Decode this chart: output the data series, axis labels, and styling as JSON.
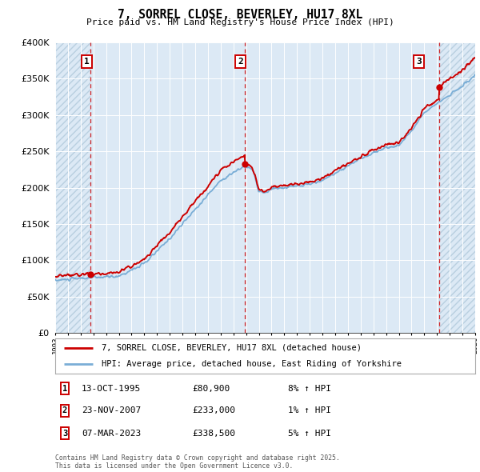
{
  "title": "7, SORREL CLOSE, BEVERLEY, HU17 8XL",
  "subtitle": "Price paid vs. HM Land Registry's House Price Index (HPI)",
  "ylim": [
    0,
    400000
  ],
  "yticks": [
    0,
    50000,
    100000,
    150000,
    200000,
    250000,
    300000,
    350000,
    400000
  ],
  "ytick_labels": [
    "£0",
    "£50K",
    "£100K",
    "£150K",
    "£200K",
    "£250K",
    "£300K",
    "£350K",
    "£400K"
  ],
  "x_start_year": 1993,
  "x_end_year": 2026,
  "sale_points": [
    {
      "year": 1995.79,
      "price": 80900,
      "label": "1"
    },
    {
      "year": 2007.9,
      "price": 233000,
      "label": "2"
    },
    {
      "year": 2023.18,
      "price": 338500,
      "label": "3"
    }
  ],
  "vline_years": [
    1995.79,
    2007.9,
    2023.18
  ],
  "legend_line1": "7, SORREL CLOSE, BEVERLEY, HU17 8XL (detached house)",
  "legend_line2": "HPI: Average price, detached house, East Riding of Yorkshire",
  "table_data": [
    {
      "num": "1",
      "date": "13-OCT-1995",
      "price": "£80,900",
      "hpi": "8% ↑ HPI"
    },
    {
      "num": "2",
      "date": "23-NOV-2007",
      "price": "£233,000",
      "hpi": "1% ↑ HPI"
    },
    {
      "num": "3",
      "date": "07-MAR-2023",
      "price": "£338,500",
      "hpi": "5% ↑ HPI"
    }
  ],
  "footnote": "Contains HM Land Registry data © Crown copyright and database right 2025.\nThis data is licensed under the Open Government Licence v3.0.",
  "bg_color": "#ffffff",
  "plot_bg_color": "#dce9f5",
  "hatch_color": "#b8cfe0",
  "grid_color": "#ffffff",
  "hpi_line_color": "#7aaed6",
  "price_line_color": "#cc0000",
  "vline_color": "#cc0000",
  "point_color": "#cc0000",
  "box_color": "#cc0000"
}
